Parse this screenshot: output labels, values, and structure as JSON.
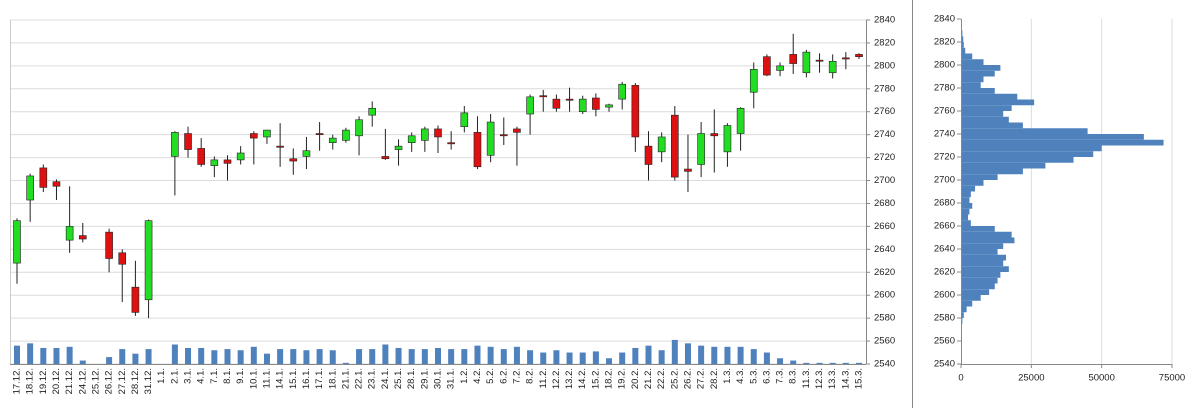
{
  "chart_data": [
    {
      "type": "candlestick",
      "categories": [
        "17.12.",
        "18.12.",
        "19.12.",
        "20.12.",
        "21.12.",
        "24.12.",
        "25.12.",
        "26.12.",
        "27.12.",
        "28.12.",
        "31.12.",
        "1.1.",
        "2.1.",
        "3.1.",
        "4.1.",
        "7.1.",
        "8.1.",
        "9.1.",
        "10.1.",
        "11.1.",
        "14.1.",
        "15.1.",
        "16.1.",
        "17.1.",
        "18.1.",
        "21.1.",
        "22.1.",
        "23.1.",
        "24.1.",
        "25.1.",
        "28.1.",
        "29.1.",
        "30.1.",
        "31.1.",
        "1.2.",
        "4.2.",
        "5.2.",
        "6.2.",
        "7.2.",
        "8.2.",
        "11.2.",
        "12.2.",
        "13.2.",
        "14.2.",
        "15.2.",
        "18.2.",
        "19.2.",
        "20.2.",
        "21.2.",
        "22.2.",
        "25.2.",
        "26.2.",
        "27.2.",
        "28.2.",
        "1.3.",
        "4.3.",
        "5.3.",
        "6.3.",
        "7.3.",
        "8.3.",
        "11.3.",
        "12.3.",
        "13.3.",
        "14.3.",
        "15.3."
      ],
      "open": [
        2628,
        2683,
        2711,
        2699,
        2648,
        2652,
        null,
        2655,
        2637,
        2607,
        2596,
        null,
        2721,
        2741,
        2728,
        2713,
        2718,
        2718,
        2741,
        2738,
        2730,
        2719,
        2721,
        2741,
        2733,
        2735,
        2739,
        2757,
        2721,
        2727,
        2733,
        2735,
        2745,
        2733,
        2747,
        2742,
        2722,
        2740,
        2745,
        2758,
        2774,
        2771,
        2771,
        2760,
        2772,
        2764,
        2771,
        2783,
        2730,
        2725,
        2757,
        2710,
        2714,
        2741,
        2725,
        2741,
        2777,
        2808,
        2796,
        2810,
        2794,
        2805,
        2794,
        2807,
        2810
      ],
      "high": [
        2667,
        2706,
        2714,
        2701,
        2695,
        2663,
        null,
        2658,
        2640,
        2630,
        2666,
        null,
        2743,
        2747,
        2737,
        2721,
        2722,
        2730,
        2743,
        2744,
        2750,
        2728,
        2738,
        2751,
        2740,
        2746,
        2756,
        2769,
        2745,
        2736,
        2742,
        2747,
        2748,
        2743,
        2765,
        2756,
        2758,
        2755,
        2747,
        2775,
        2779,
        2775,
        2781,
        2774,
        2776,
        2767,
        2786,
        2785,
        2743,
        2742,
        2765,
        2740,
        2751,
        2762,
        2750,
        2764,
        2803,
        2810,
        2803,
        2828,
        2814,
        2811,
        2810,
        2812,
        2811
      ],
      "low": [
        2610,
        2664,
        2690,
        2683,
        2637,
        2646,
        null,
        2620,
        2594,
        2582,
        2580,
        null,
        2687,
        2720,
        2712,
        2703,
        2700,
        2714,
        2714,
        2732,
        2712,
        2705,
        2710,
        2726,
        2727,
        2733,
        2722,
        2747,
        2718,
        2713,
        2725,
        2725,
        2724,
        2727,
        2742,
        2710,
        2716,
        2731,
        2713,
        2740,
        2760,
        2760,
        2760,
        2758,
        2756,
        2760,
        2762,
        2725,
        2700,
        2716,
        2700,
        2690,
        2703,
        2707,
        2712,
        2726,
        2763,
        2791,
        2791,
        2793,
        2790,
        2794,
        2789,
        2797,
        2806
      ],
      "close": [
        2665,
        2704,
        2694,
        2695,
        2660,
        2649,
        null,
        2632,
        2627,
        2585,
        2665,
        null,
        2742,
        2727,
        2714,
        2718,
        2715,
        2724,
        2737,
        2744,
        2729,
        2717,
        2726,
        2740,
        2737,
        2744,
        2753,
        2763,
        2719,
        2730,
        2739,
        2745,
        2738,
        2732,
        2759,
        2712,
        2751,
        2739,
        2742,
        2773,
        2773,
        2763,
        2770,
        2771,
        2762,
        2766,
        2784,
        2738,
        2714,
        2738,
        2703,
        2708,
        2741,
        2739,
        2748,
        2763,
        2797,
        2792,
        2800,
        2802,
        2812,
        2804,
        2804,
        2806,
        2808
      ],
      "volume": [
        2556,
        2558,
        2554,
        2554,
        2555,
        2543,
        null,
        2546,
        2553,
        2549,
        2553,
        null,
        2557,
        2554,
        2554,
        2552,
        2553,
        2552,
        2555,
        2549,
        2553,
        2553,
        2552,
        2553,
        2552,
        2541,
        2553,
        2553,
        2557,
        2554,
        2553,
        2553,
        2554,
        2553,
        2553,
        2556,
        2555,
        2553,
        2555,
        2552,
        2550,
        2552,
        2550,
        2550,
        2551,
        2545,
        2550,
        2554,
        2556,
        2552,
        2561,
        2558,
        2556,
        2555,
        2555,
        2555,
        2553,
        2550,
        2545,
        2543,
        2541,
        2541,
        2541,
        2541,
        2541
      ],
      "up_color": "#22dd22",
      "down_color": "#dd1111",
      "volume_color": "#4f81bd",
      "ylim": [
        2540,
        2840
      ],
      "yticks": [
        2540,
        2560,
        2580,
        2600,
        2620,
        2640,
        2660,
        2680,
        2700,
        2720,
        2740,
        2760,
        2780,
        2800,
        2820,
        2840
      ],
      "grid": true
    },
    {
      "type": "histogram",
      "orientation": "horizontal",
      "color": "#4f81bd",
      "bins": [
        2575,
        2580,
        2585,
        2590,
        2595,
        2600,
        2605,
        2610,
        2615,
        2620,
        2625,
        2630,
        2635,
        2640,
        2645,
        2650,
        2655,
        2660,
        2665,
        2670,
        2675,
        2680,
        2685,
        2690,
        2695,
        2700,
        2705,
        2710,
        2715,
        2720,
        2725,
        2730,
        2735,
        2740,
        2745,
        2750,
        2755,
        2760,
        2765,
        2770,
        2775,
        2780,
        2785,
        2790,
        2795,
        2800,
        2805,
        2810,
        2815,
        2820,
        2825,
        2830
      ],
      "counts": [
        500,
        1000,
        2000,
        4000,
        7000,
        10000,
        12000,
        13000,
        14000,
        17000,
        15000,
        16000,
        13000,
        15000,
        19000,
        18000,
        12000,
        3500,
        2500,
        3000,
        4000,
        3000,
        3500,
        5000,
        8000,
        13000,
        22000,
        30000,
        40000,
        47000,
        50000,
        72000,
        65000,
        45000,
        22000,
        17000,
        15000,
        18000,
        26000,
        20000,
        12000,
        7000,
        8000,
        12000,
        14000,
        8000,
        4000,
        1500,
        1000,
        800,
        500
      ],
      "xlim": [
        0,
        75000
      ],
      "xticks": [
        0,
        25000,
        50000,
        75000
      ],
      "ylim": [
        2540,
        2840
      ],
      "yticks": [
        2540,
        2560,
        2580,
        2600,
        2620,
        2640,
        2660,
        2680,
        2700,
        2720,
        2740,
        2760,
        2780,
        2800,
        2820,
        2840
      ],
      "grid": true
    }
  ]
}
